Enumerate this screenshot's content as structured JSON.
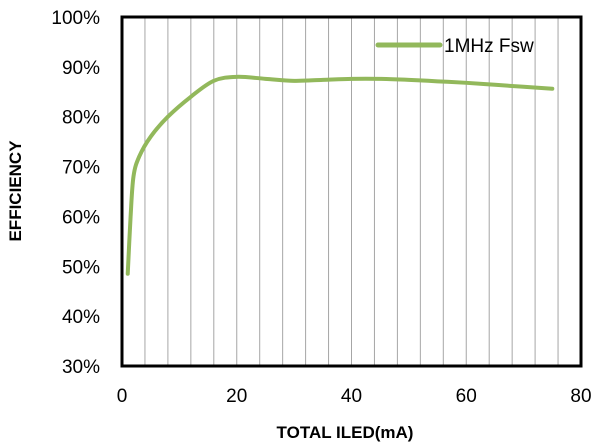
{
  "chart_data": {
    "type": "line",
    "xlabel": "TOTAL ILED(mA)",
    "ylabel": "EFFICIENCY",
    "xlim": [
      0,
      80
    ],
    "ylim": [
      30,
      100
    ],
    "x_ticks": [
      0,
      20,
      40,
      60,
      80
    ],
    "x_tick_labels": [
      "0",
      "20",
      "40",
      "60",
      "80"
    ],
    "y_ticks": [
      30,
      40,
      50,
      60,
      70,
      80,
      90,
      100
    ],
    "y_tick_labels": [
      "30%",
      "40%",
      "50%",
      "60%",
      "70%",
      "80%",
      "90%",
      "100%"
    ],
    "grid": "vertical",
    "legend_position": "top-right",
    "series": [
      {
        "name": "1MHz Fsw",
        "color": "#92B85B",
        "x": [
          1,
          1.5,
          2,
          3,
          5,
          8,
          12,
          16,
          20,
          25,
          30,
          35,
          40,
          45,
          50,
          55,
          60,
          65,
          70,
          75
        ],
        "y": [
          48.5,
          60,
          68,
          72,
          76,
          80,
          84,
          87.2,
          88,
          87.6,
          87.2,
          87.4,
          87.6,
          87.6,
          87.4,
          87.1,
          86.8,
          86.4,
          86.0,
          85.6
        ]
      }
    ]
  }
}
